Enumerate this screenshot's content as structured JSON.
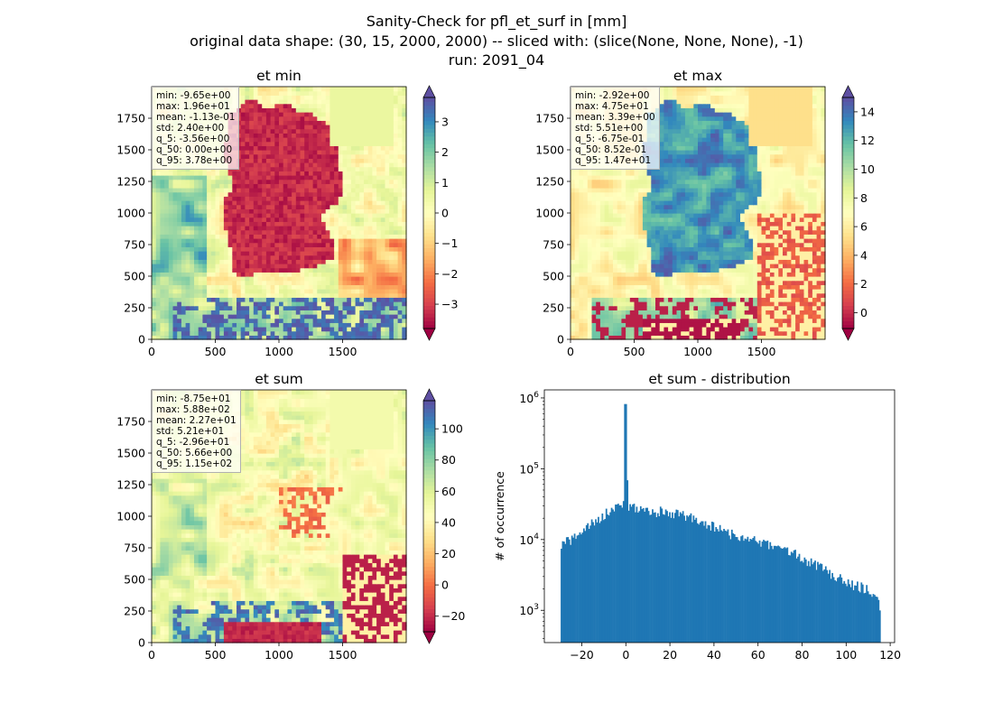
{
  "title": {
    "line1": "Sanity-Check for pfl_et_surf in [mm]",
    "line2": "original data shape: (30, 15, 2000, 2000) -- sliced with: (slice(None, None, None), -1)",
    "line3": "run: 2091_04"
  },
  "colors": {
    "spectral": [
      "#9e0142",
      "#d53e4f",
      "#f46d43",
      "#fdae61",
      "#fee08b",
      "#ffffbf",
      "#e6f598",
      "#abdda4",
      "#66c2a5",
      "#3288bd",
      "#5e4fa2"
    ],
    "hist_bar": "#1f77b4"
  },
  "chart_data": [
    {
      "type": "heatmap",
      "title": "et min",
      "field": "min",
      "xlim": [
        0,
        2000
      ],
      "ylim": [
        0,
        2000
      ],
      "xticks": [
        0,
        500,
        1000,
        1500
      ],
      "yticks": [
        0,
        250,
        500,
        750,
        1000,
        1250,
        1500,
        1750
      ],
      "colorbar": {
        "vmin": -3.8,
        "vmax": 3.8,
        "ticks": [
          -3,
          -2,
          -1,
          0,
          1,
          2,
          3
        ],
        "tick_labels": [
          "−3",
          "−2",
          "−1",
          "0",
          "1",
          "2",
          "3"
        ]
      },
      "stats": [
        "min: -9.65e+00",
        "max: 1.96e+01",
        "mean: -1.13e-01",
        "std: 2.40e+00",
        "q_5: -3.56e+00",
        "q_50: 0.00e+00",
        "q_95: 3.78e+00"
      ]
    },
    {
      "type": "heatmap",
      "title": "et max",
      "field": "max",
      "xlim": [
        0,
        2000
      ],
      "ylim": [
        0,
        2000
      ],
      "xticks": [
        0,
        500,
        1000,
        1500
      ],
      "yticks": [
        0,
        250,
        500,
        750,
        1000,
        1250,
        1500,
        1750
      ],
      "colorbar": {
        "vmin": -1.1,
        "vmax": 15,
        "ticks": [
          0,
          2,
          4,
          6,
          8,
          10,
          12,
          14
        ],
        "tick_labels": [
          "0",
          "2",
          "4",
          "6",
          "8",
          "10",
          "12",
          "14"
        ]
      },
      "stats": [
        "min: -2.92e+00",
        "max: 4.75e+01",
        "mean: 3.39e+00",
        "std: 5.51e+00",
        "q_5: -6.75e-01",
        "q_50: 8.52e-01",
        "q_95: 1.47e+01"
      ]
    },
    {
      "type": "heatmap",
      "title": "et sum",
      "field": "sum",
      "xlim": [
        0,
        2000
      ],
      "ylim": [
        0,
        2000
      ],
      "xticks": [
        0,
        500,
        1000,
        1500
      ],
      "yticks": [
        0,
        250,
        500,
        750,
        1000,
        1250,
        1500,
        1750
      ],
      "colorbar": {
        "vmin": -30,
        "vmax": 118,
        "ticks": [
          -20,
          0,
          20,
          40,
          60,
          80,
          100
        ],
        "tick_labels": [
          "−20",
          "0",
          "20",
          "40",
          "60",
          "80",
          "100"
        ]
      },
      "stats": [
        "min: -8.75e+01",
        "max: 5.88e+02",
        "mean: 2.27e+01",
        "std: 5.21e+01",
        "q_5: -2.96e+01",
        "q_50: 5.66e+00",
        "q_95: 1.15e+02"
      ]
    },
    {
      "type": "bar",
      "title": "et sum - distribution",
      "ylabel": "# of occurrence",
      "yscale": "log",
      "xlim": [
        -37,
        122
      ],
      "ylim": [
        350,
        1300000
      ],
      "xticks": [
        -20,
        0,
        20,
        40,
        60,
        80,
        100,
        120
      ],
      "xtick_labels": [
        "−20",
        "0",
        "20",
        "40",
        "60",
        "80",
        "100",
        "120"
      ],
      "yticks": [
        1000,
        10000,
        100000,
        1000000
      ],
      "ytick_labels": [
        "10^3",
        "10^4",
        "10^5",
        "10^6"
      ],
      "bins": {
        "start": -29.6,
        "end": 115,
        "width": 0.6
      },
      "counts_profile": [
        [
          -29.6,
          8000
        ],
        [
          -28,
          9000
        ],
        [
          -25,
          9500
        ],
        [
          -22,
          12000
        ],
        [
          -19,
          14000
        ],
        [
          -16,
          16000
        ],
        [
          -13,
          19000
        ],
        [
          -10,
          22000
        ],
        [
          -7,
          26000
        ],
        [
          -4,
          28000
        ],
        [
          -2,
          30000
        ],
        [
          -1,
          36000
        ],
        [
          0,
          820000
        ],
        [
          1,
          28000
        ],
        [
          2,
          30000
        ],
        [
          5,
          27000
        ],
        [
          10,
          25000
        ],
        [
          15,
          25000
        ],
        [
          20,
          24000
        ],
        [
          25,
          22000
        ],
        [
          30,
          20000
        ],
        [
          35,
          17000
        ],
        [
          40,
          15000
        ],
        [
          45,
          13000
        ],
        [
          50,
          11500
        ],
        [
          55,
          10000
        ],
        [
          60,
          9500
        ],
        [
          65,
          8500
        ],
        [
          70,
          7500
        ],
        [
          75,
          6500
        ],
        [
          80,
          5500
        ],
        [
          85,
          4500
        ],
        [
          90,
          3800
        ],
        [
          95,
          3000
        ],
        [
          100,
          2600
        ],
        [
          105,
          2200
        ],
        [
          110,
          2000
        ],
        [
          113,
          1500
        ],
        [
          115,
          1200
        ]
      ]
    }
  ]
}
